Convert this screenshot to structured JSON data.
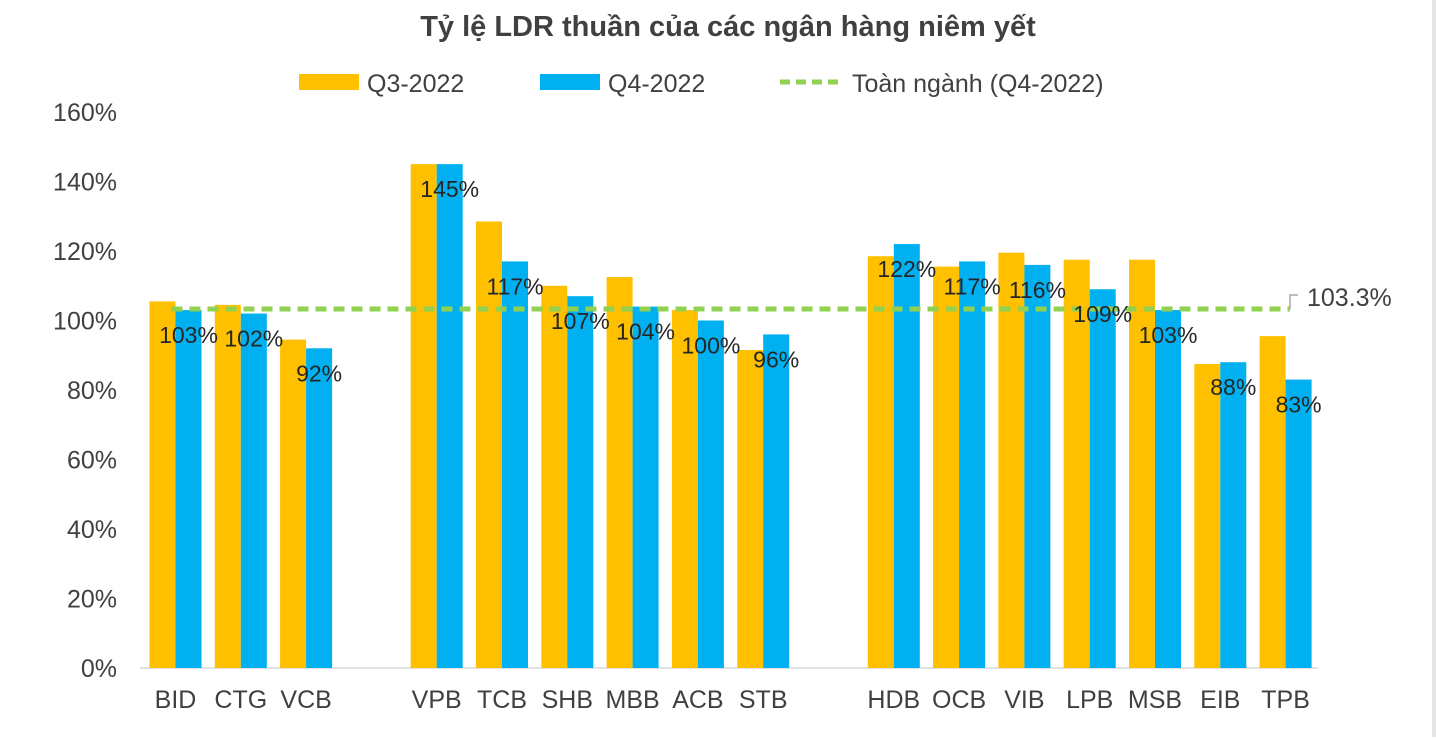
{
  "chart_data": {
    "type": "bar",
    "title": "Tỷ lệ LDR thuần của các ngân hàng niêm yết",
    "xlabel": "",
    "ylabel": "",
    "ylim": [
      0,
      160
    ],
    "yticks": [
      "0%",
      "20%",
      "40%",
      "60%",
      "80%",
      "100%",
      "120%",
      "140%",
      "160%"
    ],
    "categories": [
      "BID",
      "CTG",
      "VCB",
      "VPB",
      "TCB",
      "SHB",
      "MBB",
      "ACB",
      "STB",
      "HDB",
      "OCB",
      "VIB",
      "LPB",
      "MSB",
      "EIB",
      "TPB"
    ],
    "groups": [
      [
        "BID",
        "CTG",
        "VCB"
      ],
      [
        "VPB",
        "TCB",
        "SHB",
        "MBB",
        "ACB",
        "STB"
      ],
      [
        "HDB",
        "OCB",
        "VIB",
        "LPB",
        "MSB",
        "EIB",
        "TPB"
      ]
    ],
    "series": [
      {
        "name": "Q3-2022",
        "color": "#FFC000",
        "values": [
          105.5,
          104.5,
          94.5,
          145,
          128.5,
          110,
          112.5,
          103,
          91.5,
          118.5,
          115.5,
          119.5,
          117.5,
          117.5,
          87.5,
          95.5
        ]
      },
      {
        "name": "Q4-2022",
        "color": "#00B0F0",
        "values": [
          103,
          102,
          92,
          145,
          117,
          107,
          104,
          100,
          96,
          122,
          117,
          116,
          109,
          103,
          88,
          83
        ],
        "data_labels": [
          "103%",
          "102%",
          "92%",
          "145%",
          "117%",
          "107%",
          "104%",
          "100%",
          "96%",
          "122%",
          "117%",
          "116%",
          "109%",
          "103%",
          "88%",
          "83%"
        ]
      }
    ],
    "reference_line": {
      "name": "Toàn ngành (Q4-2022)",
      "value": 103.3,
      "label": "103.3%",
      "color": "#92D050",
      "style": "dashed"
    },
    "legend_position": "top",
    "grid": false
  }
}
